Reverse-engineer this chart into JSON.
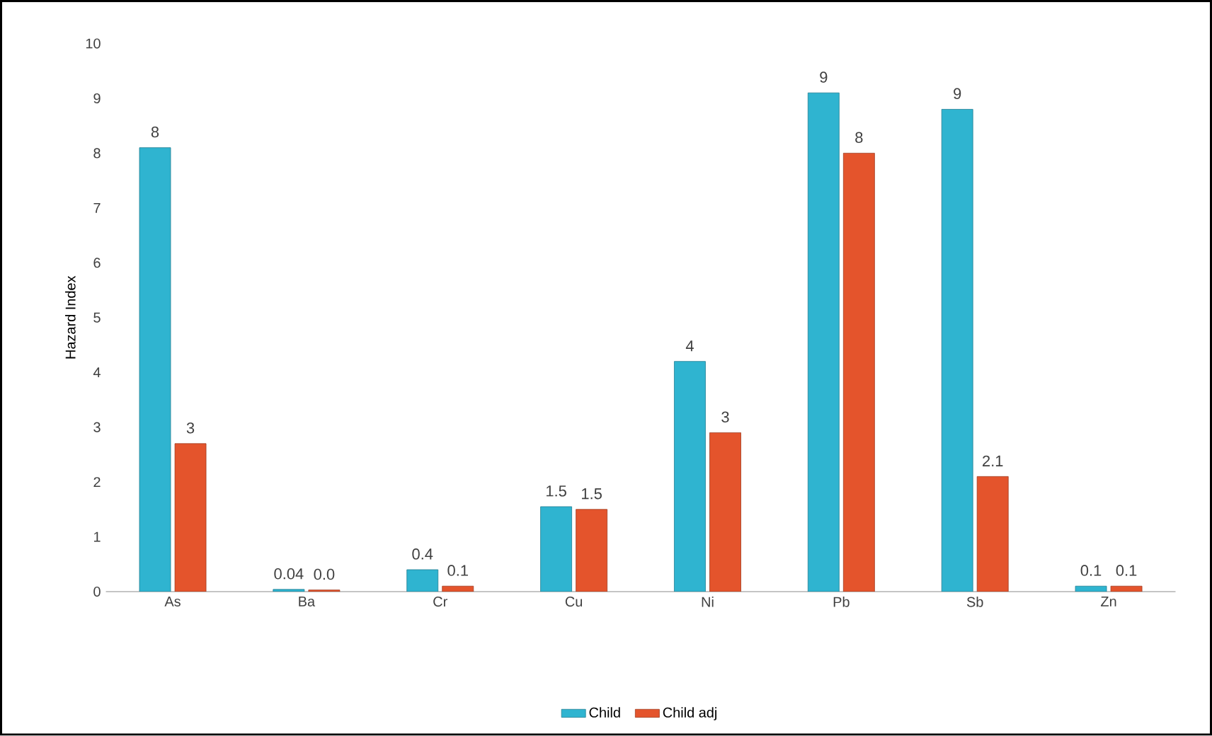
{
  "chart_data": {
    "type": "bar",
    "ylabel": "Hazard Index",
    "categories": [
      "As",
      "Ba",
      "Cr",
      "Cu",
      "Ni",
      "Pb",
      "Sb",
      "Zn"
    ],
    "series": [
      {
        "name": "Child",
        "color": "#2fb4d0",
        "values": [
          8.1,
          0.04,
          0.4,
          1.55,
          4.2,
          9.1,
          8.8,
          0.1
        ],
        "value_labels": [
          "8",
          "0.04",
          "0.4",
          "1.5",
          "4",
          "9",
          "9",
          "0.1"
        ]
      },
      {
        "name": "Child adj",
        "color": "#e4542c",
        "values": [
          2.7,
          0.03,
          0.1,
          1.5,
          2.9,
          8.0,
          2.1,
          0.1
        ],
        "value_labels": [
          "3",
          "0.0",
          "0.1",
          "1.5",
          "3",
          "8",
          "2.1",
          "0.1"
        ]
      }
    ],
    "ylim": [
      0,
      10
    ],
    "yticks": [
      0,
      1,
      2,
      3,
      4,
      5,
      6,
      7,
      8,
      9,
      10
    ],
    "legend": "bottom"
  }
}
